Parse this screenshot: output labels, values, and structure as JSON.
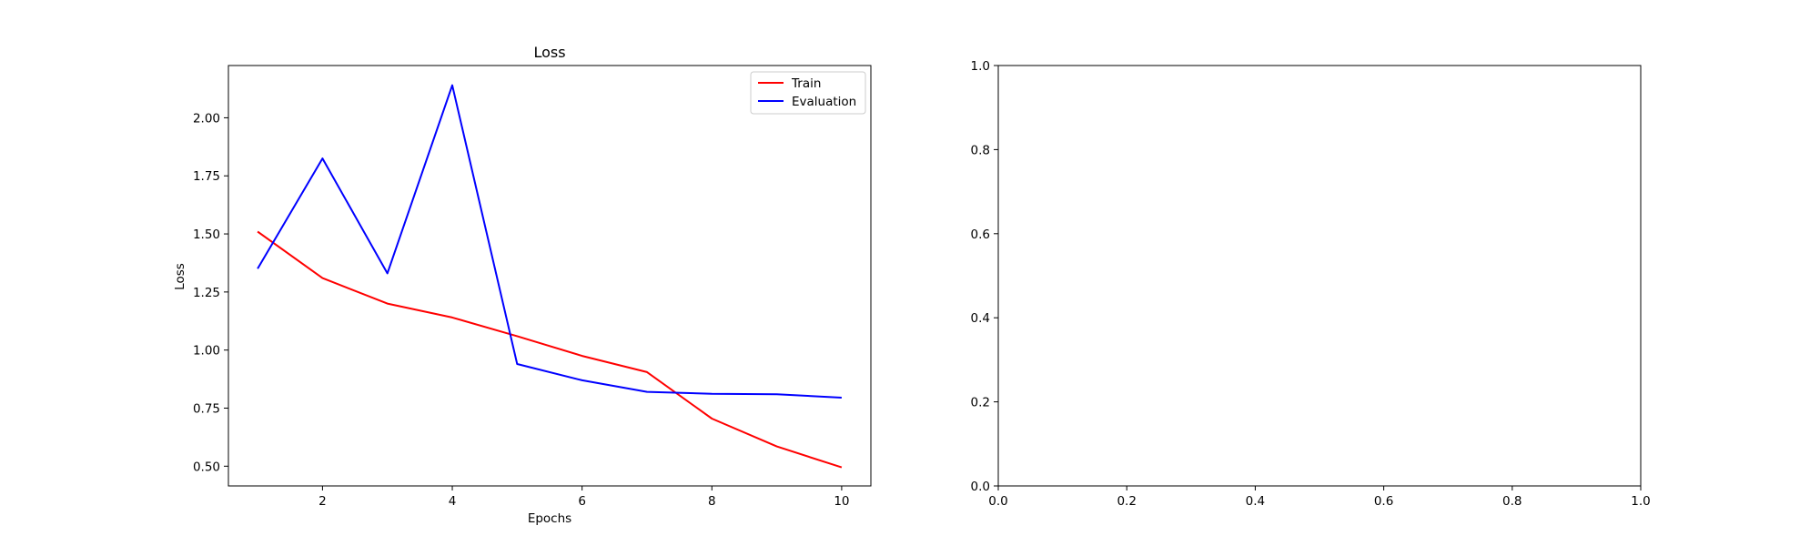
{
  "chart_data": [
    {
      "type": "line",
      "title": "Loss",
      "xlabel": "Epochs",
      "ylabel": "Loss",
      "x": [
        1,
        2,
        3,
        4,
        5,
        6,
        7,
        8,
        9,
        10
      ],
      "xlim": [
        0.55,
        10.45
      ],
      "ylim": [
        0.415,
        2.225
      ],
      "xticks": [
        2,
        4,
        6,
        8,
        10
      ],
      "yticks": [
        0.5,
        0.75,
        1.0,
        1.25,
        1.5,
        1.75,
        2.0
      ],
      "xtick_labels": [
        "2",
        "4",
        "6",
        "8",
        "10"
      ],
      "ytick_labels": [
        "0.50",
        "0.75",
        "1.00",
        "1.25",
        "1.50",
        "1.75",
        "2.00"
      ],
      "legend": "top-right",
      "grid": false,
      "series": [
        {
          "name": "Train",
          "color": "#ff0000",
          "values": [
            1.51,
            1.31,
            1.2,
            1.14,
            1.06,
            0.975,
            0.905,
            0.705,
            0.585,
            0.495
          ]
        },
        {
          "name": "Evaluation",
          "color": "#0000ff",
          "values": [
            1.35,
            1.825,
            1.33,
            2.14,
            0.94,
            0.87,
            0.82,
            0.812,
            0.81,
            0.795
          ]
        }
      ]
    },
    {
      "type": "line",
      "title": "",
      "xlabel": "",
      "ylabel": "",
      "xlim": [
        0,
        1
      ],
      "ylim": [
        0,
        1
      ],
      "xticks": [
        0,
        0.2,
        0.4,
        0.6,
        0.8,
        1.0
      ],
      "yticks": [
        0,
        0.2,
        0.4,
        0.6,
        0.8,
        1.0
      ],
      "xtick_labels": [
        "0.0",
        "0.2",
        "0.4",
        "0.6",
        "0.8",
        "1.0"
      ],
      "ytick_labels": [
        "0.0",
        "0.2",
        "0.4",
        "0.6",
        "0.8",
        "1.0"
      ],
      "grid": false,
      "series": []
    }
  ]
}
